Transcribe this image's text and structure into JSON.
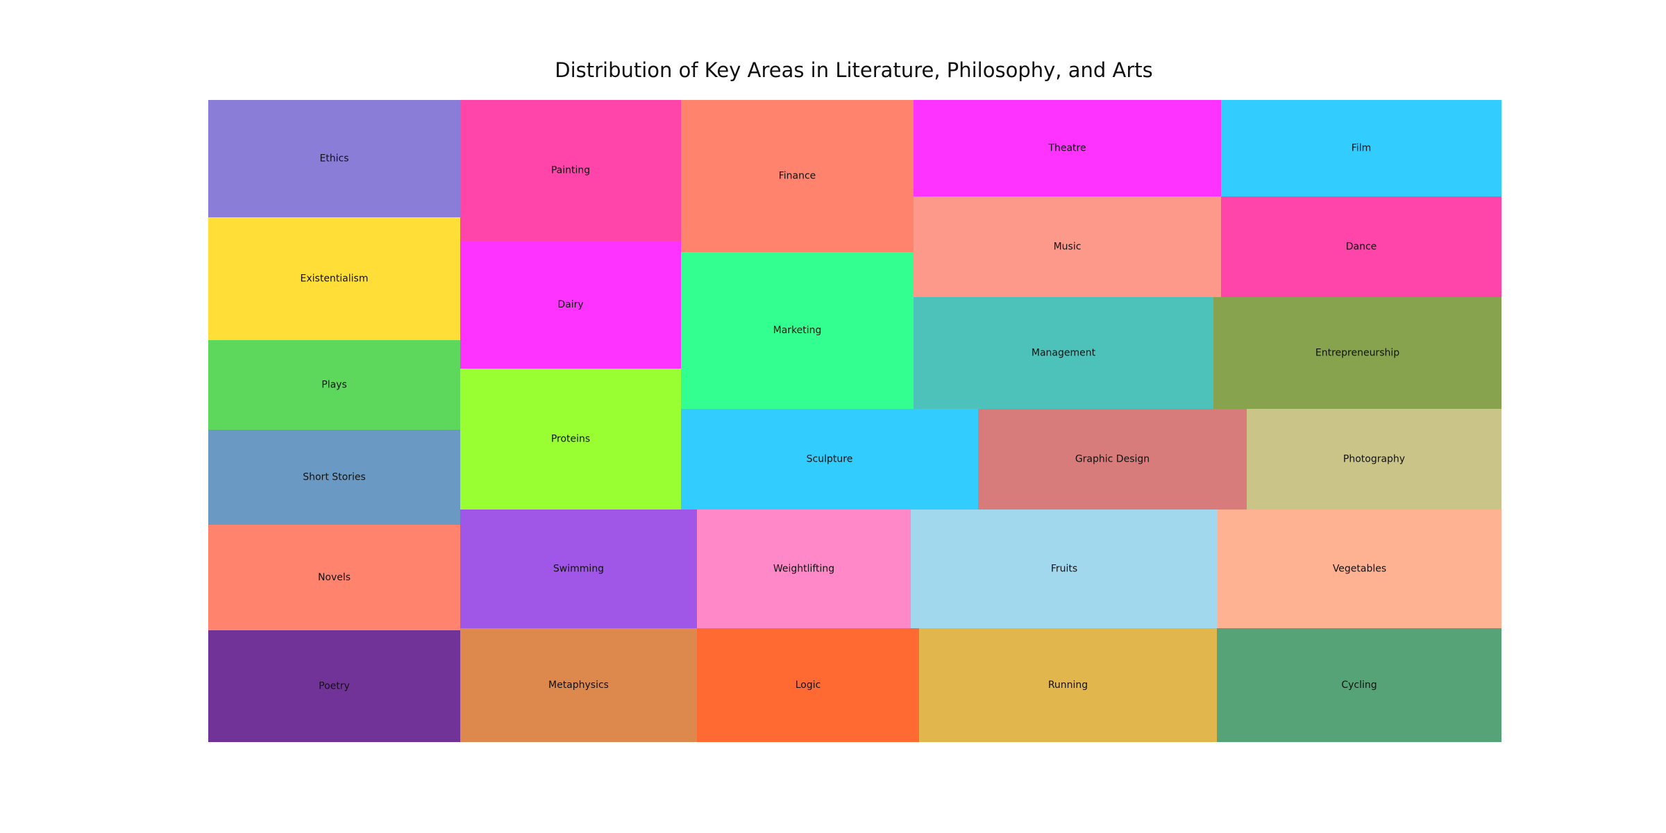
{
  "chart_data": {
    "type": "treemap",
    "title": "Distribution of Key Areas in Literature, Philosophy, and Arts",
    "xlabel": "",
    "ylabel": "",
    "grid": false,
    "legend": "none",
    "tiles": [
      {
        "label": "Ethics",
        "color": "#8a7dd8"
      },
      {
        "label": "Existentialism",
        "color": "#ffdf37"
      },
      {
        "label": "Plays",
        "color": "#5dd85d"
      },
      {
        "label": "Short Stories",
        "color": "#6a9ac4"
      },
      {
        "label": "Novels",
        "color": "#ff836d"
      },
      {
        "label": "Poetry",
        "color": "#723399"
      },
      {
        "label": "Painting",
        "color": "#ff44aa"
      },
      {
        "label": "Dairy",
        "color": "#ff33ff"
      },
      {
        "label": "Proteins",
        "color": "#99ff33"
      },
      {
        "label": "Finance",
        "color": "#ff836d"
      },
      {
        "label": "Marketing",
        "color": "#33ff91"
      },
      {
        "label": "Theatre",
        "color": "#ff33ff"
      },
      {
        "label": "Film",
        "color": "#33ccff"
      },
      {
        "label": "Music",
        "color": "#fc998b"
      },
      {
        "label": "Dance",
        "color": "#ff44aa"
      },
      {
        "label": "Management",
        "color": "#4dc2bb"
      },
      {
        "label": "Entrepreneurship",
        "color": "#88a34d"
      },
      {
        "label": "Sculpture",
        "color": "#33ccff"
      },
      {
        "label": "Graphic Design",
        "color": "#d77b7b"
      },
      {
        "label": "Photography",
        "color": "#cbc489"
      },
      {
        "label": "Swimming",
        "color": "#a056e6"
      },
      {
        "label": "Weightlifting",
        "color": "#ff88c8"
      },
      {
        "label": "Fruits",
        "color": "#a1d8ee"
      },
      {
        "label": "Vegetables",
        "color": "#ffb291"
      },
      {
        "label": "Metaphysics",
        "color": "#dd884d"
      },
      {
        "label": "Logic",
        "color": "#ff6a33"
      },
      {
        "label": "Running",
        "color": "#e1b64d"
      },
      {
        "label": "Cycling",
        "color": "#56a378"
      }
    ]
  }
}
